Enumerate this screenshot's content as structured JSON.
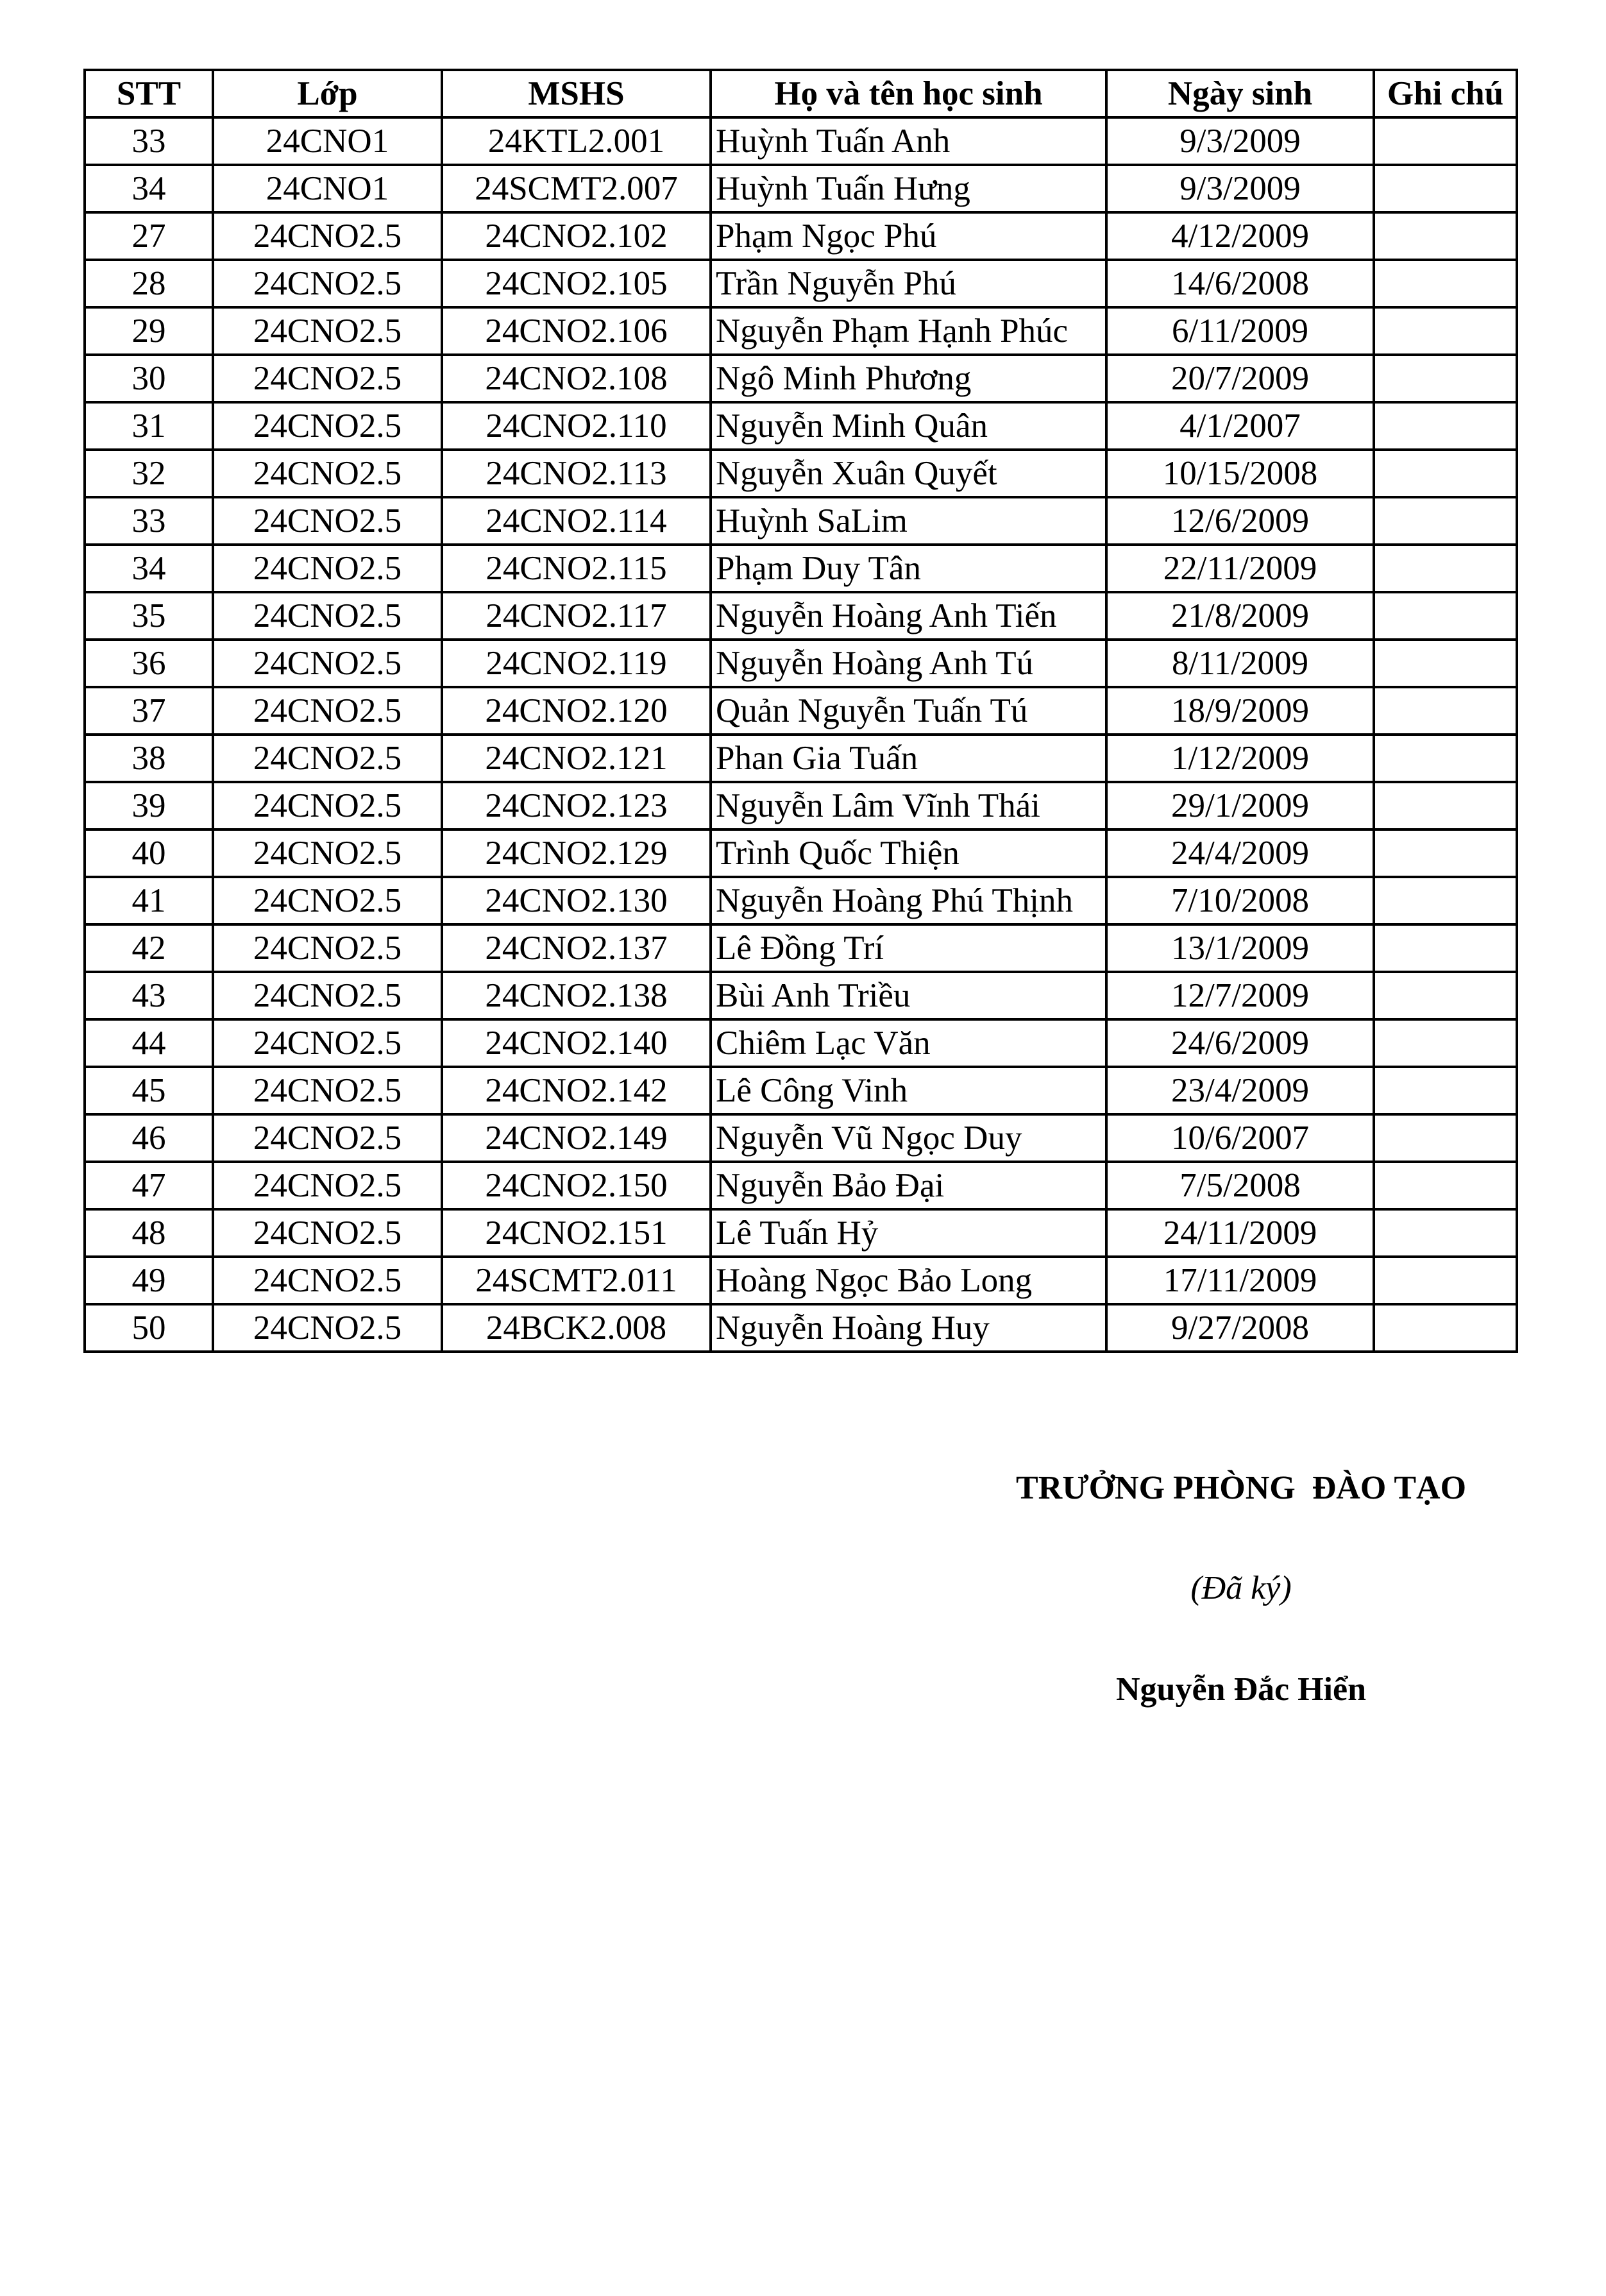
{
  "table": {
    "headers": [
      "STT",
      "Lớp",
      "MSHS",
      "Họ và tên học sinh",
      "Ngày sinh",
      "Ghi chú"
    ],
    "rows": [
      [
        "33",
        "24CNO1",
        "24KTL2.001",
        "Huỳnh Tuấn Anh",
        "9/3/2009",
        ""
      ],
      [
        "34",
        "24CNO1",
        "24SCMT2.007",
        "Huỳnh Tuấn Hưng",
        "9/3/2009",
        ""
      ],
      [
        "27",
        "24CNO2.5",
        "24CNO2.102",
        "Phạm Ngọc Phú",
        "4/12/2009",
        ""
      ],
      [
        "28",
        "24CNO2.5",
        "24CNO2.105",
        "Trần Nguyễn Phú",
        "14/6/2008",
        ""
      ],
      [
        "29",
        "24CNO2.5",
        "24CNO2.106",
        "Nguyễn Phạm Hạnh Phúc",
        "6/11/2009",
        ""
      ],
      [
        "30",
        "24CNO2.5",
        "24CNO2.108",
        "Ngô Minh Phương",
        "20/7/2009",
        ""
      ],
      [
        "31",
        "24CNO2.5",
        "24CNO2.110",
        "Nguyễn Minh Quân",
        "4/1/2007",
        ""
      ],
      [
        "32",
        "24CNO2.5",
        "24CNO2.113",
        "Nguyễn Xuân Quyết",
        "10/15/2008",
        ""
      ],
      [
        "33",
        "24CNO2.5",
        "24CNO2.114",
        "Huỳnh SaLim",
        "12/6/2009",
        ""
      ],
      [
        "34",
        "24CNO2.5",
        "24CNO2.115",
        "Phạm Duy Tân",
        "22/11/2009",
        ""
      ],
      [
        "35",
        "24CNO2.5",
        "24CNO2.117",
        "Nguyễn Hoàng Anh Tiến",
        "21/8/2009",
        ""
      ],
      [
        "36",
        "24CNO2.5",
        "24CNO2.119",
        "Nguyễn Hoàng Anh Tú",
        "8/11/2009",
        ""
      ],
      [
        "37",
        "24CNO2.5",
        "24CNO2.120",
        "Quản Nguyễn Tuấn Tú",
        "18/9/2009",
        ""
      ],
      [
        "38",
        "24CNO2.5",
        "24CNO2.121",
        "Phan Gia Tuấn",
        "1/12/2009",
        ""
      ],
      [
        "39",
        "24CNO2.5",
        "24CNO2.123",
        "Nguyễn Lâm Vĩnh Thái",
        "29/1/2009",
        ""
      ],
      [
        "40",
        "24CNO2.5",
        "24CNO2.129",
        "Trình Quốc Thiện",
        "24/4/2009",
        ""
      ],
      [
        "41",
        "24CNO2.5",
        "24CNO2.130",
        "Nguyễn Hoàng Phú Thịnh",
        "7/10/2008",
        ""
      ],
      [
        "42",
        "24CNO2.5",
        "24CNO2.137",
        "Lê Đồng Trí",
        "13/1/2009",
        ""
      ],
      [
        "43",
        "24CNO2.5",
        "24CNO2.138",
        "Bùi Anh Triều",
        "12/7/2009",
        ""
      ],
      [
        "44",
        "24CNO2.5",
        "24CNO2.140",
        "Chiêm Lạc Văn",
        "24/6/2009",
        ""
      ],
      [
        "45",
        "24CNO2.5",
        "24CNO2.142",
        "Lê Công Vinh",
        "23/4/2009",
        ""
      ],
      [
        "46",
        "24CNO2.5",
        "24CNO2.149",
        "Nguyễn Vũ Ngọc Duy",
        "10/6/2007",
        ""
      ],
      [
        "47",
        "24CNO2.5",
        "24CNO2.150",
        "Nguyễn Bảo Đại",
        "7/5/2008",
        ""
      ],
      [
        "48",
        "24CNO2.5",
        "24CNO2.151",
        "Lê Tuấn Hỷ",
        "24/11/2009",
        ""
      ],
      [
        "49",
        "24CNO2.5",
        "24SCMT2.011",
        "Hoàng Ngọc Bảo Long",
        "17/11/2009",
        ""
      ],
      [
        "50",
        "24CNO2.5",
        "24BCK2.008",
        "Nguyễn Hoàng Huy",
        "9/27/2008",
        ""
      ]
    ]
  },
  "signature": {
    "title": "TRƯỞNG PHÒNG  ĐÀO TẠO",
    "signed_note": "(Đã ký)",
    "name": "Nguyễn Đắc Hiển"
  }
}
